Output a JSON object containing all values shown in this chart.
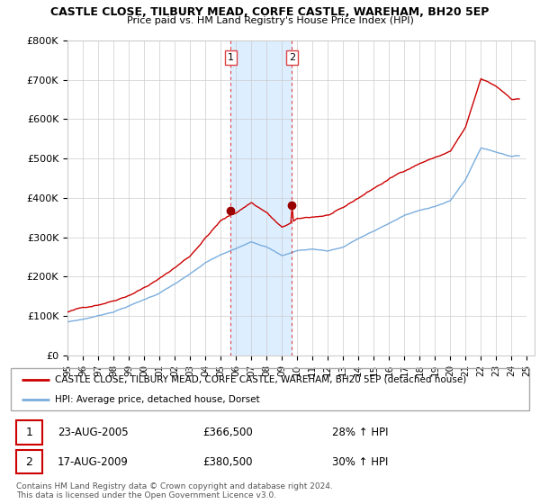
{
  "title": "CASTLE CLOSE, TILBURY MEAD, CORFE CASTLE, WAREHAM, BH20 5EP",
  "subtitle": "Price paid vs. HM Land Registry's House Price Index (HPI)",
  "ylabel_ticks": [
    "£0",
    "£100K",
    "£200K",
    "£300K",
    "£400K",
    "£500K",
    "£600K",
    "£700K",
    "£800K"
  ],
  "ytick_values": [
    0,
    100000,
    200000,
    300000,
    400000,
    500000,
    600000,
    700000,
    800000
  ],
  "ylim": [
    0,
    800000
  ],
  "xlim_start": 1995.0,
  "xlim_end": 2025.5,
  "xtick_years": [
    1995,
    1996,
    1997,
    1998,
    1999,
    2000,
    2001,
    2002,
    2003,
    2004,
    2005,
    2006,
    2007,
    2008,
    2009,
    2010,
    2011,
    2012,
    2013,
    2014,
    2015,
    2016,
    2017,
    2018,
    2019,
    2020,
    2021,
    2022,
    2023,
    2024,
    2025
  ],
  "sale1_x": 2005.65,
  "sale1_y": 366500,
  "sale2_x": 2009.65,
  "sale2_y": 380500,
  "shade_x1": 2005.65,
  "shade_x2": 2009.65,
  "red_line_color": "#cc0000",
  "blue_line_color": "#7aaddd",
  "shade_color": "#ddeeff",
  "grid_color": "#cccccc",
  "marker_color": "#990000",
  "dashed_line_color": "#dd4444",
  "legend_red_label": "CASTLE CLOSE, TILBURY MEAD, CORFE CASTLE, WAREHAM, BH20 5EP (detached house)",
  "legend_blue_label": "HPI: Average price, detached house, Dorset",
  "annotation1_date": "23-AUG-2005",
  "annotation1_price": "£366,500",
  "annotation1_hpi": "28% ↑ HPI",
  "annotation2_date": "17-AUG-2009",
  "annotation2_price": "£380,500",
  "annotation2_hpi": "30% ↑ HPI",
  "footer": "Contains HM Land Registry data © Crown copyright and database right 2024.\nThis data is licensed under the Open Government Licence v3.0."
}
